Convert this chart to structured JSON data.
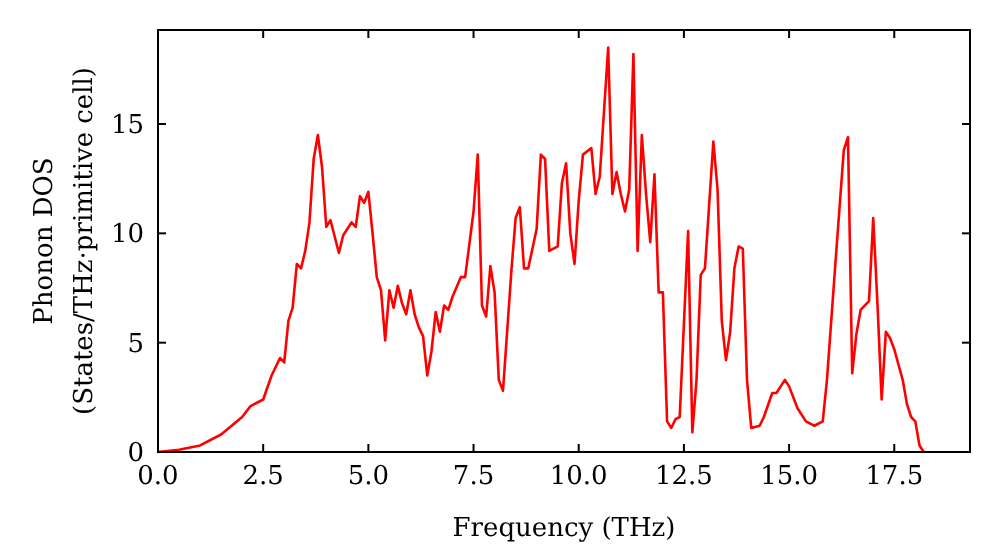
{
  "chart_data": {
    "type": "line",
    "xlabel": "Frequency (THz)",
    "ylabel": "Phonon DOS\n(States/THz·primitive cell)",
    "xlim": [
      0,
      19.3
    ],
    "ylim": [
      0,
      19.3
    ],
    "xticks": [
      {
        "value": 0,
        "label": "0.0"
      },
      {
        "value": 2.5,
        "label": "2.5"
      },
      {
        "value": 5,
        "label": "5.0"
      },
      {
        "value": 7.5,
        "label": "7.5"
      },
      {
        "value": 10,
        "label": "10.0"
      },
      {
        "value": 12.5,
        "label": "12.5"
      },
      {
        "value": 15,
        "label": "15.0"
      },
      {
        "value": 17.5,
        "label": "17.5"
      }
    ],
    "yticks": [
      0,
      5,
      10,
      15
    ],
    "grid": false,
    "marker": "none",
    "line_style": "solid",
    "series": [
      {
        "color": "#ff0000",
        "x": [
          0,
          0.5,
          1.0,
          1.5,
          2.0,
          2.2,
          2.5,
          2.7,
          2.9,
          3.0,
          3.1,
          3.2,
          3.3,
          3.4,
          3.5,
          3.6,
          3.7,
          3.8,
          3.9,
          4.0,
          4.1,
          4.3,
          4.4,
          4.6,
          4.7,
          4.8,
          4.9,
          5.0,
          5.1,
          5.2,
          5.3,
          5.4,
          5.5,
          5.6,
          5.7,
          5.8,
          5.9,
          6.0,
          6.1,
          6.2,
          6.3,
          6.4,
          6.5,
          6.6,
          6.7,
          6.8,
          6.9,
          7.0,
          7.2,
          7.3,
          7.5,
          7.6,
          7.7,
          7.8,
          7.9,
          8.0,
          8.1,
          8.2,
          8.4,
          8.5,
          8.6,
          8.7,
          8.8,
          9.0,
          9.1,
          9.2,
          9.3,
          9.5,
          9.6,
          9.7,
          9.8,
          9.9,
          10.0,
          10.1,
          10.3,
          10.4,
          10.5,
          10.7,
          10.8,
          10.9,
          11.0,
          11.1,
          11.2,
          11.3,
          11.4,
          11.5,
          11.6,
          11.7,
          11.8,
          11.9,
          12.0,
          12.1,
          12.2,
          12.3,
          12.4,
          12.6,
          12.7,
          12.8,
          12.9,
          13.0,
          13.2,
          13.3,
          13.4,
          13.5,
          13.6,
          13.7,
          13.8,
          13.9,
          14.0,
          14.1,
          14.3,
          14.4,
          14.6,
          14.7,
          14.8,
          14.9,
          15.0,
          15.2,
          15.4,
          15.6,
          15.8,
          15.9,
          16.1,
          16.3,
          16.4,
          16.5,
          16.6,
          16.7,
          16.9,
          17.0,
          17.1,
          17.2,
          17.3,
          17.4,
          17.5,
          17.7,
          17.8,
          17.9,
          18.0,
          18.1,
          18.2
        ],
        "values": [
          0,
          0.1,
          0.3,
          0.8,
          1.6,
          2.1,
          2.4,
          3.5,
          4.3,
          4.1,
          6,
          6.6,
          8.6,
          8.4,
          9.2,
          10.5,
          13.4,
          14.5,
          13,
          10.3,
          10.6,
          9.1,
          9.9,
          10.5,
          10.3,
          11.7,
          11.4,
          11.9,
          10,
          8,
          7.4,
          5.1,
          7.4,
          6.6,
          7.6,
          6.8,
          6.3,
          7.4,
          6.3,
          5.7,
          5.3,
          3.5,
          4.6,
          6.4,
          5.5,
          6.7,
          6.5,
          7.1,
          8,
          8,
          11,
          13.6,
          6.7,
          6.2,
          8.5,
          7.3,
          3.3,
          2.8,
          8.3,
          10.7,
          11.2,
          8.4,
          8.4,
          10.2,
          13.6,
          13.4,
          9.2,
          9.4,
          12.3,
          13.2,
          10,
          8.6,
          11.5,
          13.6,
          13.9,
          11.8,
          12.6,
          18.5,
          11.8,
          12.8,
          11.8,
          11,
          12,
          18.2,
          9.2,
          14.5,
          11.8,
          9.6,
          12.7,
          7.3,
          7.3,
          1.4,
          1.1,
          1.5,
          1.6,
          10.1,
          0.9,
          3.3,
          8.1,
          8.4,
          14.2,
          12,
          6,
          4.2,
          5.5,
          8.4,
          9.4,
          9.3,
          3.3,
          1.1,
          1.2,
          1.6,
          2.7,
          2.7,
          3.0,
          3.3,
          3.0,
          2.0,
          1.4,
          1.2,
          1.4,
          3.3,
          8.6,
          13.8,
          14.4,
          3.6,
          5.4,
          6.5,
          6.9,
          10.7,
          6.8,
          2.4,
          5.5,
          5.2,
          4.7,
          3.3,
          2.2,
          1.6,
          1.4,
          0.3,
          0
        ]
      }
    ]
  }
}
